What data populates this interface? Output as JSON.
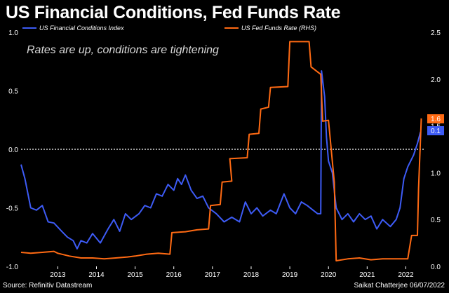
{
  "title": "US Financial Conditions, Fed Funds Rate",
  "source": "Source: Refinitiv Datastream",
  "credit": "Saikat Chatterjee 06/07/2022",
  "colors": {
    "fci": "#3d5bf5",
    "ffr": "#ff6a13",
    "background": "#000000",
    "text": "#ffffff"
  },
  "chart_data": {
    "type": "line",
    "title": "US Financial Conditions, Fed Funds Rate",
    "annotation": "Rates are up, conditions are tightening",
    "x_range": [
      2012.05,
      2022.5
    ],
    "x_ticks": [
      2013,
      2014,
      2015,
      2016,
      2017,
      2018,
      2019,
      2020,
      2021,
      2022
    ],
    "y_left": {
      "range": [
        -1.0,
        1.0
      ],
      "ticks": [
        -1.0,
        -0.5,
        0.0,
        0.5,
        1.0
      ],
      "tick_labels": [
        "-1.0",
        "-0.5",
        "0.0",
        "0.5",
        "1.0"
      ]
    },
    "y_right": {
      "range": [
        0.0,
        2.5
      ],
      "ticks": [
        0.0,
        0.5,
        1.0,
        1.5,
        2.0,
        2.5
      ],
      "tick_labels": [
        "0.0",
        "0.5",
        "1.0",
        "1.5",
        "2.0",
        "2.5"
      ]
    },
    "zero_line": 0.0,
    "series": [
      {
        "name": "US Financial Conditions Index",
        "axis": "left",
        "end_label": "0.1",
        "points": [
          [
            2012.05,
            -0.13
          ],
          [
            2012.15,
            -0.25
          ],
          [
            2012.3,
            -0.5
          ],
          [
            2012.45,
            -0.52
          ],
          [
            2012.6,
            -0.48
          ],
          [
            2012.75,
            -0.62
          ],
          [
            2012.9,
            -0.63
          ],
          [
            2013.1,
            -0.7
          ],
          [
            2013.25,
            -0.75
          ],
          [
            2013.4,
            -0.78
          ],
          [
            2013.5,
            -0.85
          ],
          [
            2013.6,
            -0.78
          ],
          [
            2013.75,
            -0.8
          ],
          [
            2013.9,
            -0.72
          ],
          [
            2014.1,
            -0.8
          ],
          [
            2014.3,
            -0.68
          ],
          [
            2014.45,
            -0.6
          ],
          [
            2014.6,
            -0.7
          ],
          [
            2014.75,
            -0.55
          ],
          [
            2014.9,
            -0.6
          ],
          [
            2015.1,
            -0.55
          ],
          [
            2015.25,
            -0.48
          ],
          [
            2015.4,
            -0.5
          ],
          [
            2015.55,
            -0.38
          ],
          [
            2015.7,
            -0.4
          ],
          [
            2015.85,
            -0.3
          ],
          [
            2016.0,
            -0.35
          ],
          [
            2016.1,
            -0.25
          ],
          [
            2016.2,
            -0.3
          ],
          [
            2016.3,
            -0.22
          ],
          [
            2016.45,
            -0.35
          ],
          [
            2016.6,
            -0.42
          ],
          [
            2016.75,
            -0.4
          ],
          [
            2016.9,
            -0.5
          ],
          [
            2017.1,
            -0.55
          ],
          [
            2017.3,
            -0.62
          ],
          [
            2017.5,
            -0.58
          ],
          [
            2017.7,
            -0.62
          ],
          [
            2017.85,
            -0.45
          ],
          [
            2018.0,
            -0.55
          ],
          [
            2018.15,
            -0.5
          ],
          [
            2018.3,
            -0.57
          ],
          [
            2018.5,
            -0.52
          ],
          [
            2018.65,
            -0.55
          ],
          [
            2018.85,
            -0.38
          ],
          [
            2019.0,
            -0.5
          ],
          [
            2019.15,
            -0.55
          ],
          [
            2019.3,
            -0.45
          ],
          [
            2019.45,
            -0.48
          ],
          [
            2019.6,
            -0.52
          ],
          [
            2019.72,
            -0.55
          ],
          [
            2019.8,
            -0.55
          ],
          [
            2019.82,
            0.67
          ],
          [
            2019.9,
            0.45
          ],
          [
            2019.95,
            0.1
          ],
          [
            2020.0,
            -0.1
          ],
          [
            2020.1,
            -0.2
          ],
          [
            2020.2,
            -0.5
          ],
          [
            2020.35,
            -0.6
          ],
          [
            2020.5,
            -0.55
          ],
          [
            2020.65,
            -0.62
          ],
          [
            2020.8,
            -0.55
          ],
          [
            2020.95,
            -0.6
          ],
          [
            2021.1,
            -0.57
          ],
          [
            2021.25,
            -0.68
          ],
          [
            2021.4,
            -0.6
          ],
          [
            2021.6,
            -0.66
          ],
          [
            2021.75,
            -0.6
          ],
          [
            2021.85,
            -0.5
          ],
          [
            2021.95,
            -0.25
          ],
          [
            2022.05,
            -0.15
          ],
          [
            2022.2,
            -0.05
          ],
          [
            2022.3,
            0.05
          ],
          [
            2022.38,
            0.15
          ]
        ]
      },
      {
        "name": "US Fed Funds Rate (RHS)",
        "axis": "right",
        "end_label": "1.6",
        "points": [
          [
            2012.05,
            0.15
          ],
          [
            2012.3,
            0.14
          ],
          [
            2012.6,
            0.15
          ],
          [
            2012.9,
            0.16
          ],
          [
            2013.0,
            0.14
          ],
          [
            2013.3,
            0.11
          ],
          [
            2013.6,
            0.09
          ],
          [
            2013.9,
            0.09
          ],
          [
            2014.2,
            0.08
          ],
          [
            2014.5,
            0.09
          ],
          [
            2014.8,
            0.1
          ],
          [
            2015.0,
            0.11
          ],
          [
            2015.3,
            0.13
          ],
          [
            2015.6,
            0.14
          ],
          [
            2015.9,
            0.13
          ],
          [
            2015.95,
            0.36
          ],
          [
            2016.3,
            0.37
          ],
          [
            2016.6,
            0.39
          ],
          [
            2016.9,
            0.4
          ],
          [
            2016.95,
            0.65
          ],
          [
            2017.2,
            0.66
          ],
          [
            2017.25,
            0.9
          ],
          [
            2017.5,
            0.91
          ],
          [
            2017.45,
            1.15
          ],
          [
            2017.9,
            1.16
          ],
          [
            2017.95,
            1.41
          ],
          [
            2018.2,
            1.42
          ],
          [
            2018.25,
            1.68
          ],
          [
            2018.45,
            1.7
          ],
          [
            2018.5,
            1.91
          ],
          [
            2018.95,
            1.92
          ],
          [
            2019.0,
            2.4
          ],
          [
            2019.5,
            2.4
          ],
          [
            2019.55,
            2.13
          ],
          [
            2019.8,
            2.05
          ],
          [
            2019.85,
            1.55
          ],
          [
            2020.0,
            1.56
          ],
          [
            2020.15,
            0.9
          ],
          [
            2020.2,
            0.06
          ],
          [
            2020.5,
            0.08
          ],
          [
            2020.8,
            0.09
          ],
          [
            2021.1,
            0.07
          ],
          [
            2021.4,
            0.08
          ],
          [
            2021.7,
            0.08
          ],
          [
            2022.05,
            0.08
          ],
          [
            2022.15,
            0.33
          ],
          [
            2022.3,
            0.33
          ],
          [
            2022.33,
            0.83
          ],
          [
            2022.4,
            1.58
          ]
        ]
      }
    ]
  }
}
